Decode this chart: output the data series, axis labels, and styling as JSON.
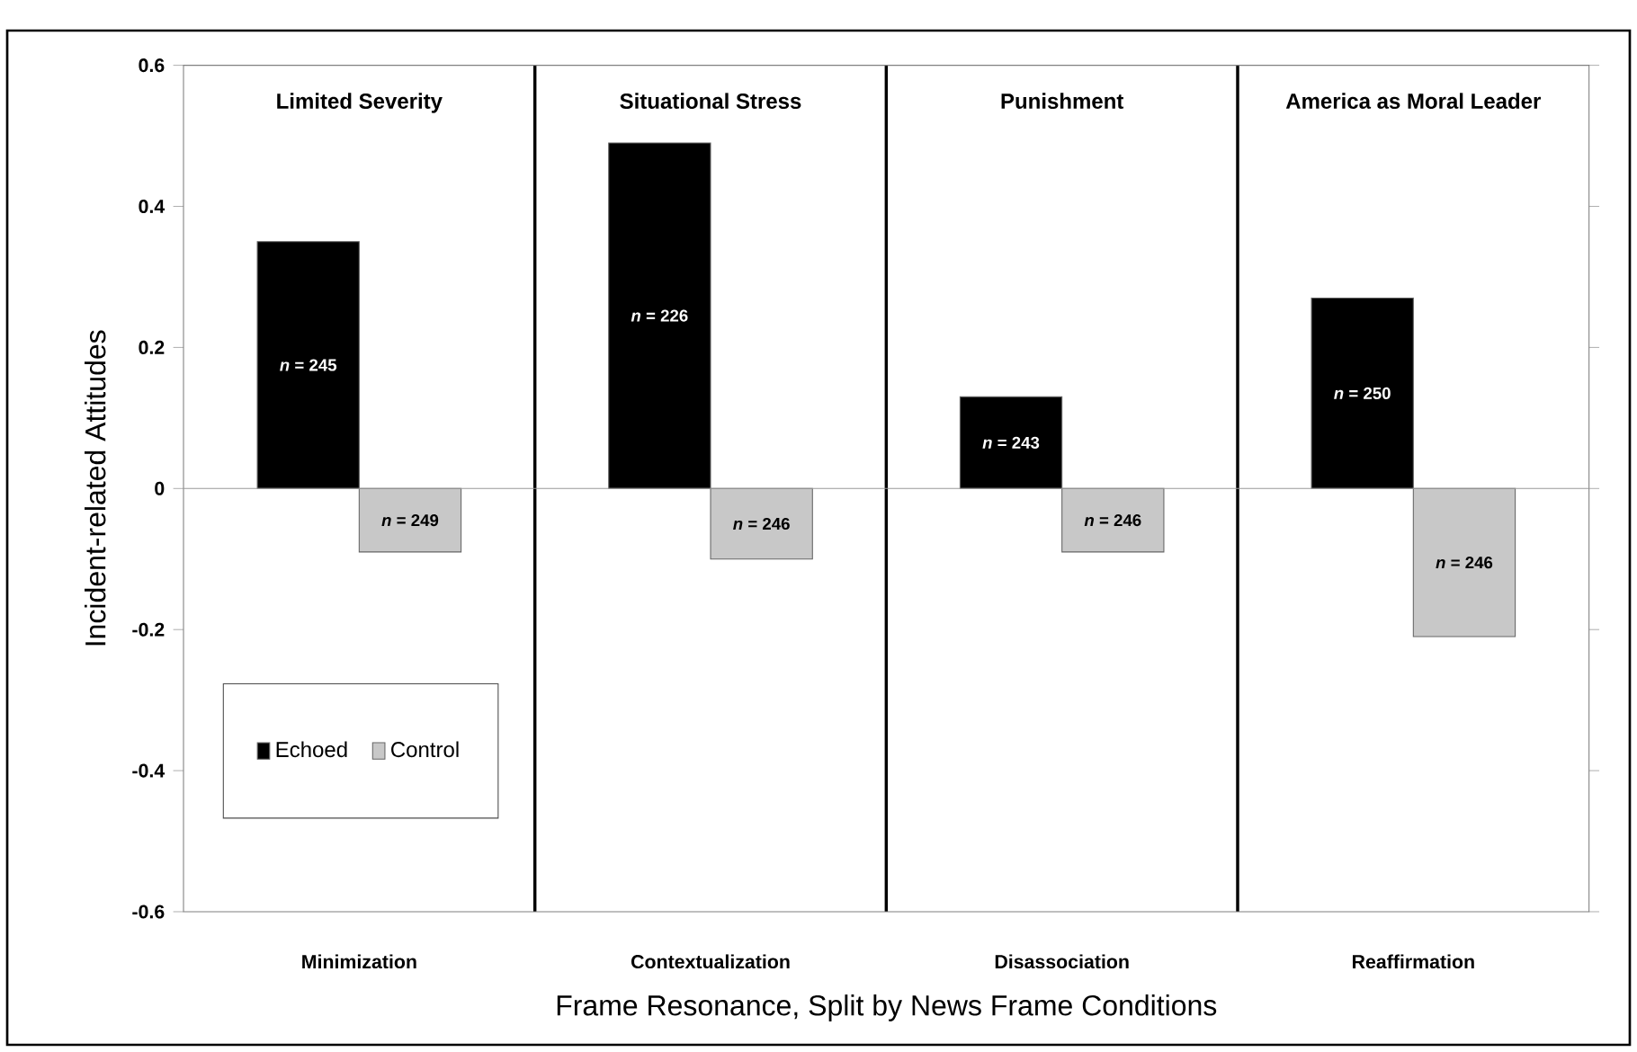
{
  "chart_data": {
    "type": "bar",
    "xlabel": "Frame Resonance, Split by News Frame Conditions",
    "ylabel": "Incident-related Attitudes",
    "categories": [
      "Minimization",
      "Contextualization",
      "Disassociation",
      "Reaffirmation"
    ],
    "series": [
      {
        "name": "Echoed",
        "color": "#000000",
        "values": [
          0.35,
          0.49,
          0.13,
          0.27
        ]
      },
      {
        "name": "Control",
        "color": "#c8c8c8",
        "values": [
          -0.09,
          -0.1,
          -0.09,
          -0.21
        ]
      }
    ],
    "annotations": [
      "Limited Severity",
      "Situational Stress",
      "Punishment",
      "America as Moral Leader",
      "*n* = 245",
      "*n* = 226",
      "*n* = 243",
      "*n* = 250",
      "*n* = 249",
      "*n* = 246",
      "*n* = 246",
      "*n* = 246"
    ],
    "ylim": [
      -0.6,
      0.6
    ],
    "yticks": [
      -0.6,
      -0.4,
      -0.2,
      0,
      0.2,
      0.4,
      0.6
    ],
    "grid": "x",
    "legend": "bottom left"
  }
}
